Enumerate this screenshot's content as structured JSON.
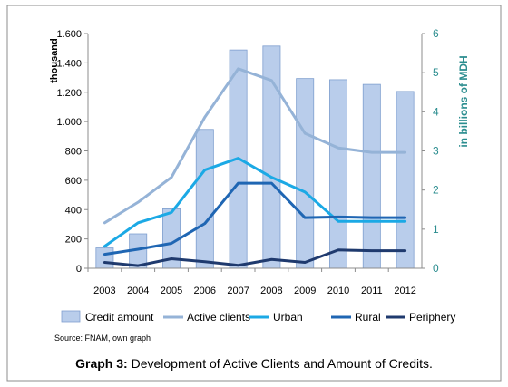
{
  "chart_data": {
    "type": "bar",
    "categories": [
      "2003",
      "2004",
      "2005",
      "2006",
      "2007",
      "2008",
      "2009",
      "2010",
      "2011",
      "2012"
    ],
    "y_left": {
      "label": "thousand",
      "ylim": [
        0,
        1600
      ],
      "ticks": [
        0,
        200,
        400,
        600,
        800,
        1000,
        1200,
        1400,
        1600
      ],
      "tick_labels": [
        "0",
        "200",
        "400",
        "600",
        "800",
        "1.000",
        "1.200",
        "1.400",
        "1.600"
      ]
    },
    "y_right": {
      "label": "in billions of MDH",
      "ylim": [
        0,
        6
      ],
      "ticks": [
        0,
        1,
        2,
        3,
        4,
        5,
        6
      ],
      "tick_labels": [
        "0",
        "1",
        "2",
        "3",
        "4",
        "5",
        "6"
      ]
    },
    "series": [
      {
        "name": "Credit amount",
        "kind": "bar",
        "axis": "right",
        "color": "#b9cdeb",
        "values": [
          0.52,
          0.88,
          1.52,
          3.55,
          5.58,
          5.68,
          4.85,
          4.82,
          4.7,
          4.52
        ]
      },
      {
        "name": "Active clients",
        "kind": "line",
        "axis": "left",
        "color": "#95b3d7",
        "values": [
          310,
          450,
          620,
          1030,
          1360,
          1280,
          920,
          820,
          790,
          790
        ]
      },
      {
        "name": "Urban",
        "kind": "line",
        "axis": "left",
        "color": "#1ba9e5",
        "values": [
          150,
          310,
          380,
          670,
          750,
          620,
          520,
          320,
          320,
          320
        ]
      },
      {
        "name": "Rural",
        "kind": "line",
        "axis": "left",
        "color": "#1f66b3",
        "values": [
          95,
          130,
          170,
          305,
          580,
          580,
          345,
          350,
          345,
          345
        ]
      },
      {
        "name": "Periphery",
        "kind": "line",
        "axis": "left",
        "color": "#1f3a6e",
        "values": [
          40,
          18,
          65,
          45,
          20,
          60,
          40,
          125,
          120,
          120
        ]
      }
    ],
    "grid": false,
    "legend_position": "bottom"
  },
  "source": "Source: FNAM, own graph",
  "caption": {
    "prefix": "Graph 3:",
    "text": " Development of Active Clients and Amount of Credits."
  }
}
